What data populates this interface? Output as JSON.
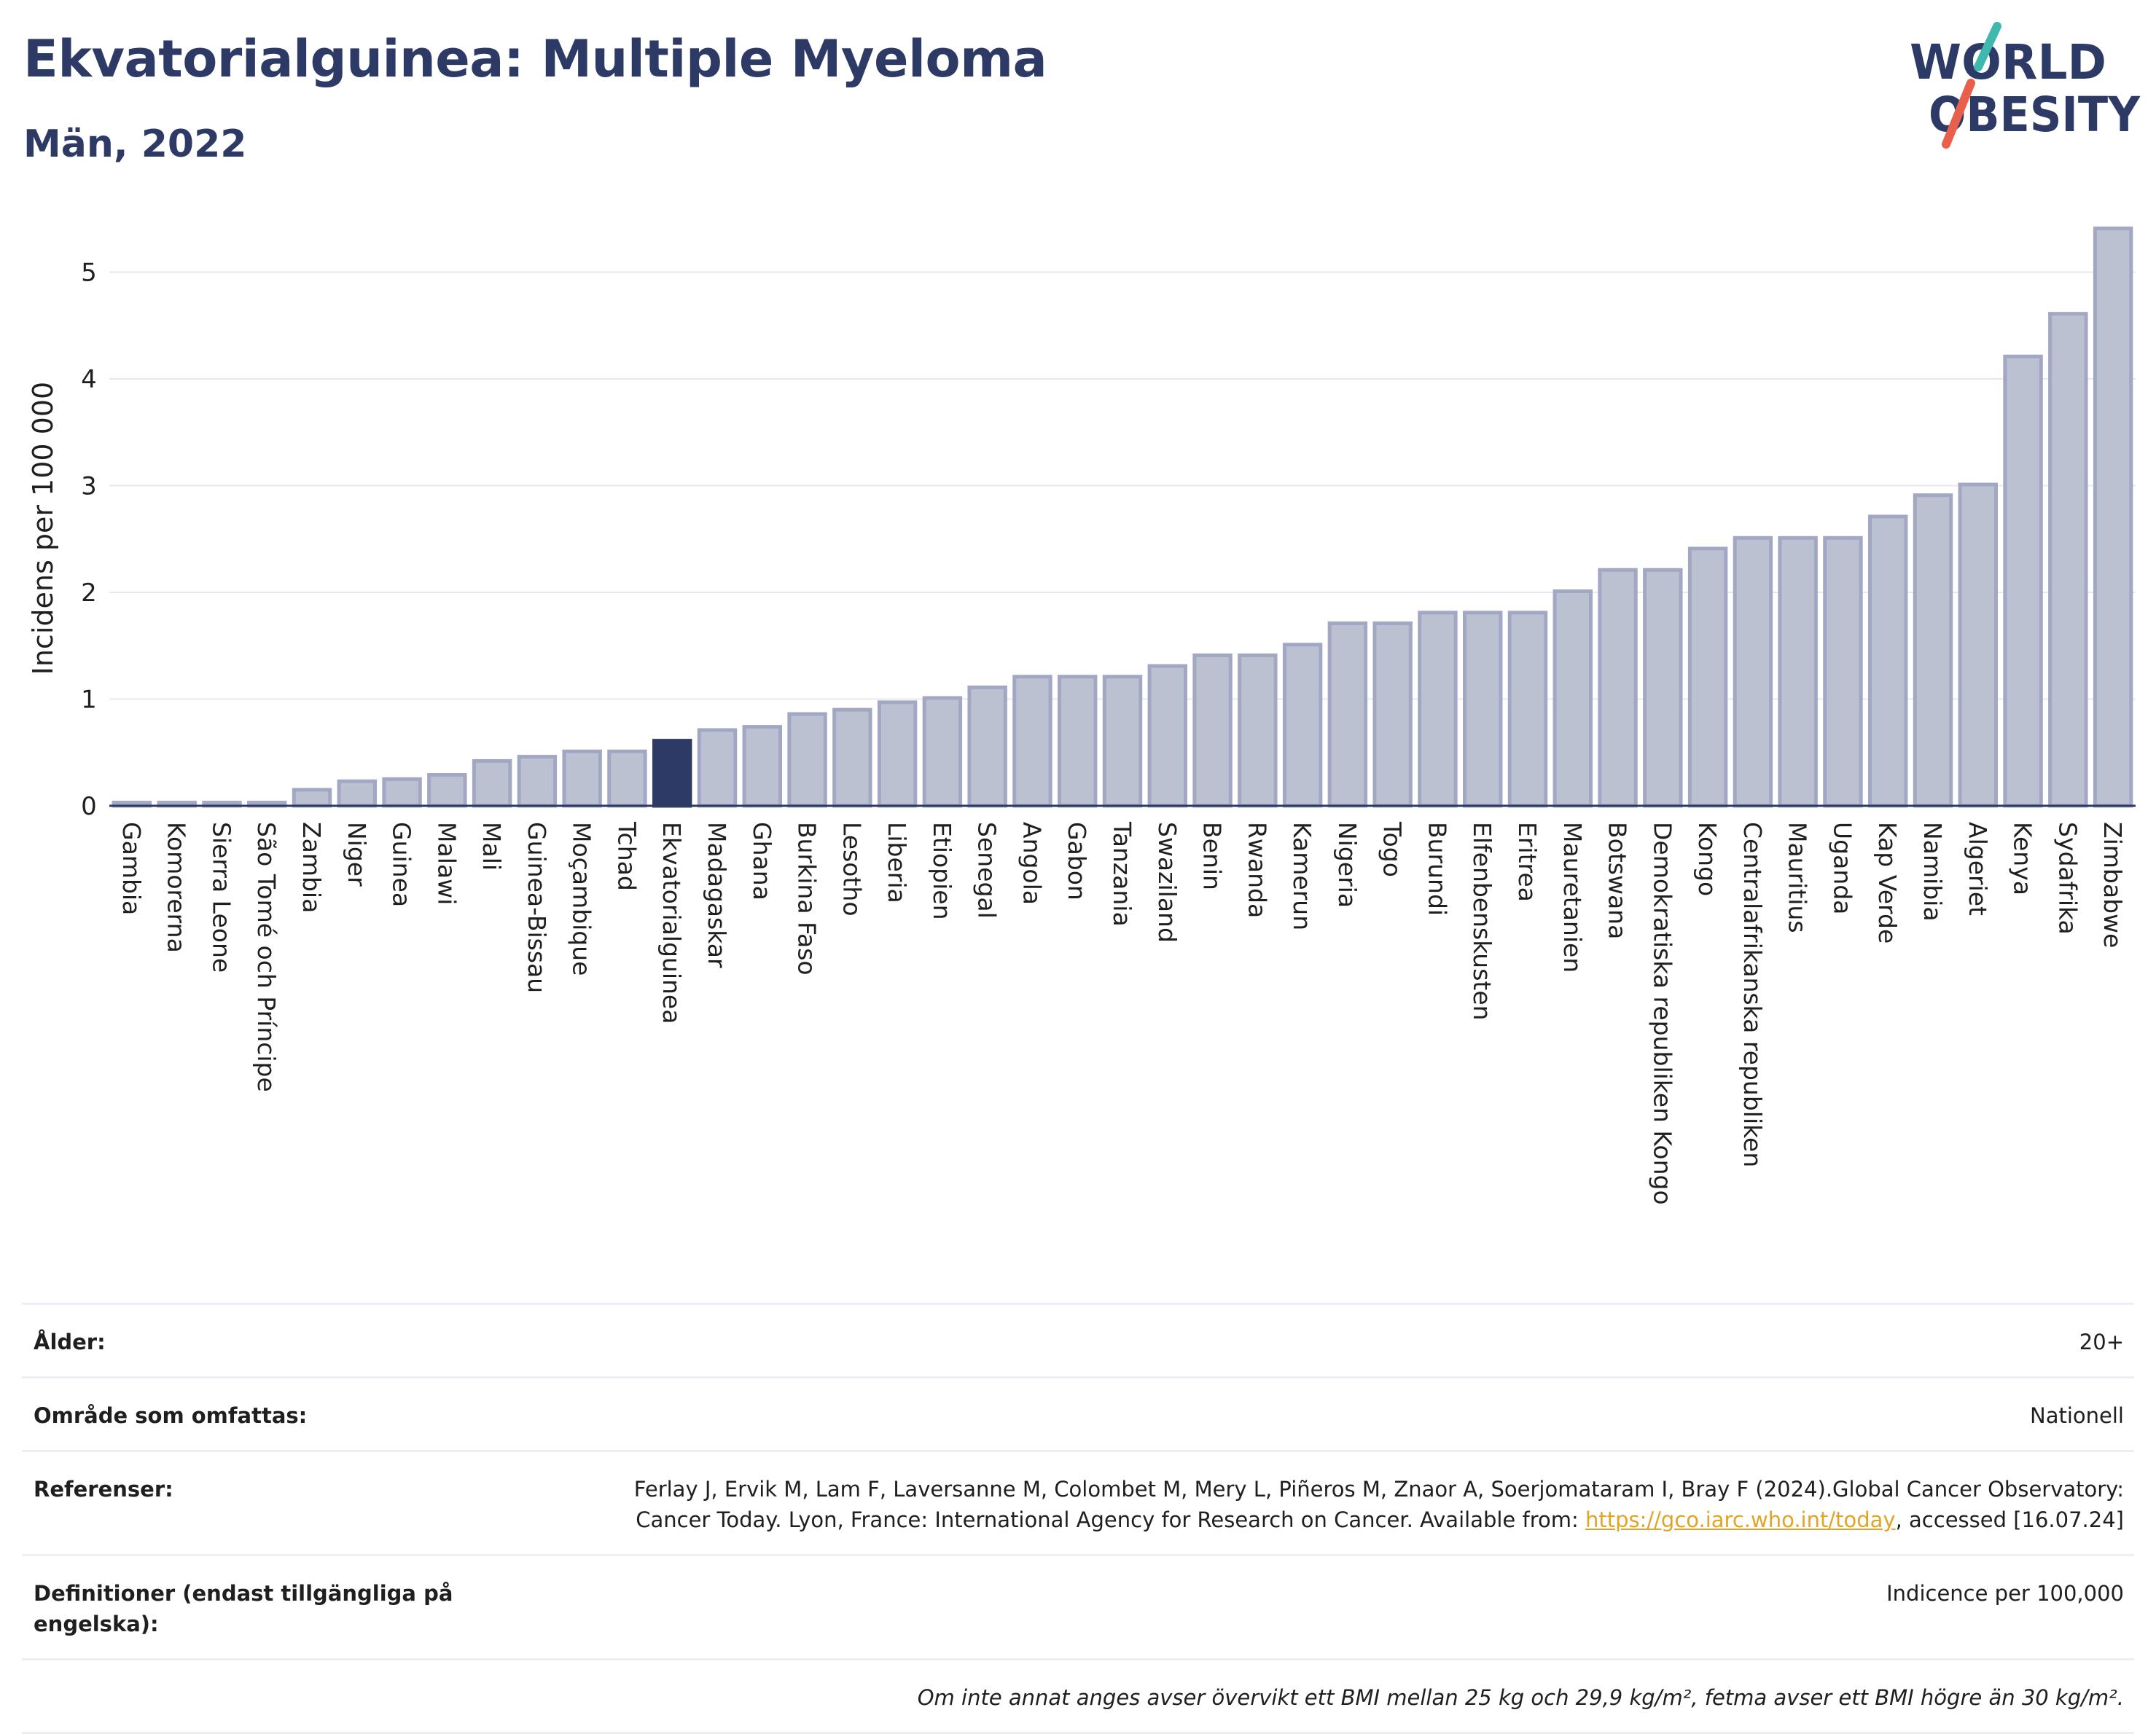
{
  "header": {
    "title": "Ekvatorialguinea: Multiple Myeloma",
    "subtitle": "Män, 2022"
  },
  "logo": {
    "line1": "WORLD",
    "line2": "OBESITY",
    "text_color": "#2d3a66",
    "accent_teal": "#3fb8b0",
    "accent_red": "#e8604c"
  },
  "chart_data": {
    "type": "bar",
    "ylabel": "Incidens per 100 000",
    "ylim": [
      0,
      5.5
    ],
    "yticks": [
      0,
      1,
      2,
      3,
      4,
      5
    ],
    "grid": true,
    "highlight": "Ekvatorialguinea",
    "highlight_color": "#2d3a66",
    "bar_color": "#bcc1d2",
    "bar_border_color": "#a2a8c3",
    "categories": [
      "Gambia",
      "Komorerna",
      "Sierra Leone",
      "São Tomé och Príncipe",
      "Zambia",
      "Niger",
      "Guinea",
      "Malawi",
      "Mali",
      "Guinea-Bissau",
      "Moçambique",
      "Tchad",
      "Ekvatorialguinea",
      "Madagaskar",
      "Ghana",
      "Burkina Faso",
      "Lesotho",
      "Liberia",
      "Etiopien",
      "Senegal",
      "Angola",
      "Gabon",
      "Tanzania",
      "Swaziland",
      "Benin",
      "Rwanda",
      "Kamerun",
      "Nigeria",
      "Togo",
      "Burundi",
      "Elfenbenskusten",
      "Eritrea",
      "Mauretanien",
      "Botswana",
      "Demokratiska republiken Kongo",
      "Kongo",
      "Centralafrikanska republiken",
      "Mauritius",
      "Uganda",
      "Kap Verde",
      "Namibia",
      "Algeriet",
      "Kenya",
      "Sydafrika",
      "Zimbabwe"
    ],
    "values": [
      0.03,
      0.03,
      0.03,
      0.03,
      0.15,
      0.23,
      0.25,
      0.29,
      0.42,
      0.46,
      0.51,
      0.51,
      0.61,
      0.71,
      0.74,
      0.86,
      0.9,
      0.97,
      1.01,
      1.11,
      1.21,
      1.21,
      1.21,
      1.31,
      1.41,
      1.41,
      1.51,
      1.71,
      1.71,
      1.81,
      1.81,
      1.81,
      2.01,
      2.21,
      2.21,
      2.41,
      2.51,
      2.51,
      2.51,
      2.71,
      2.91,
      3.01,
      4.21,
      4.61,
      5.41
    ]
  },
  "meta": {
    "age_label": "Ålder:",
    "age_value": "20+",
    "area_label": "Område som omfattas:",
    "area_value": "Nationell",
    "refs_label": "Referenser:",
    "refs_text": "Ferlay J, Ervik M, Lam F, Laversanne M, Colombet M, Mery L, Piñeros M, Znaor A, Soerjomataram I, Bray F (2024).Global Cancer Observatory: Cancer Today. Lyon, France: International Agency for Research on Cancer. Available from: ",
    "refs_link": "https://gco.iarc.who.int/today",
    "refs_suffix": ", accessed [16.07.24]",
    "defs_label": "Definitioner (endast tillgängliga på engelska):",
    "defs_value": "Indicence per 100,000",
    "note": "Om inte annat anges avser övervikt ett BMI mellan 25 kg och 29,9 kg/m², fetma avser ett BMI högre än 30 kg/m²."
  }
}
